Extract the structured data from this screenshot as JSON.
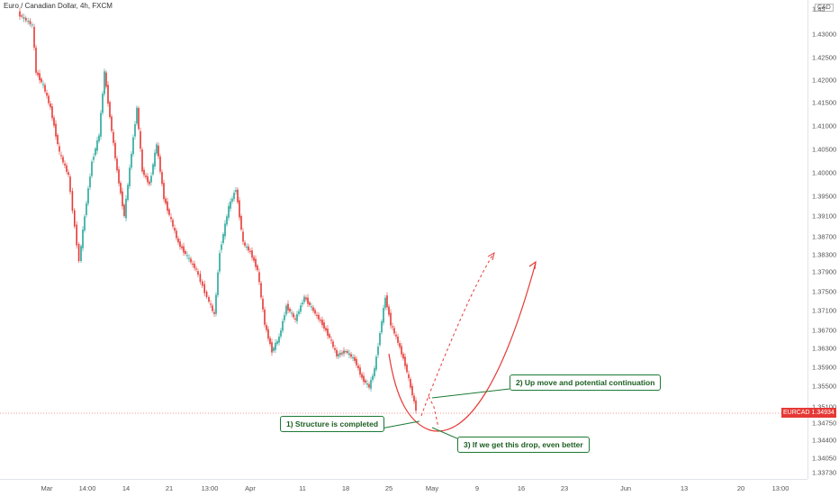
{
  "header": {
    "title": "Euro / Canadian Dollar, 4h, FXCM",
    "currency": "CAD"
  },
  "price_axis": {
    "labels": [
      "1.43",
      "1.43000",
      "1.42500",
      "1.42000",
      "1.41500",
      "1.41000",
      "1.40500",
      "1.40000",
      "1.39500",
      "1.39100",
      "1.38700",
      "1.38300",
      "1.37900",
      "1.37500",
      "1.37100",
      "1.36700",
      "1.36300",
      "1.35900",
      "1.35500",
      "1.35100",
      "1.34750",
      "1.34400",
      "1.34050",
      "1.33730"
    ]
  },
  "time_axis": {
    "labels": [
      "Mar",
      "14:00",
      "14",
      "21",
      "13:00",
      "Apr",
      "11",
      "18",
      "25",
      "May",
      "9",
      "16",
      "23",
      "Jun",
      "13",
      "20",
      "13:00"
    ]
  },
  "current_price": {
    "symbol": "EURCAD",
    "value": "1.34934"
  },
  "annotations": {
    "structure": "1) Structure is completed",
    "up_move": "2) Up move and potential continuation",
    "drop": "3) If we get this drop, even better"
  },
  "colors": {
    "up_candle": "#26a69a",
    "down_candle": "#e53935",
    "projection": "#e53935",
    "callout_border": "#1b7a34"
  }
}
